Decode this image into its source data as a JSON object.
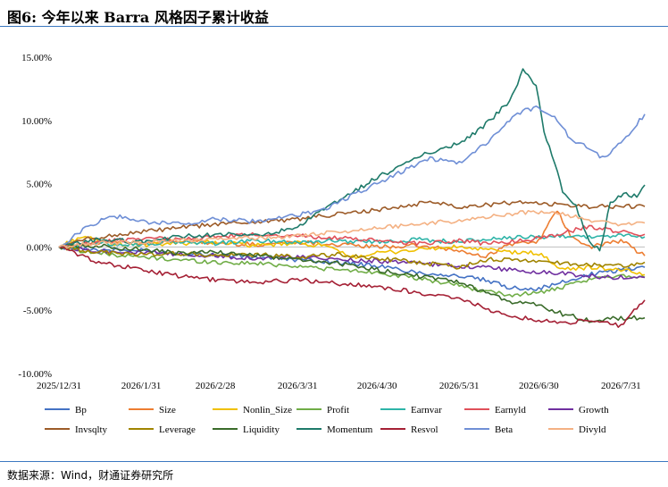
{
  "header": {
    "title": "图6: 今年以来 Barra 风格因子累计收益"
  },
  "footer": {
    "source": "数据来源：Wind，财通证券研究所"
  },
  "chart_data": {
    "type": "line",
    "title": "图6: 今年以来 Barra 风格因子累计收益",
    "xlabel": "",
    "ylabel": "",
    "ylim": [
      -10,
      15
    ],
    "yticks": [
      "15.00%",
      "10.00%",
      "5.00%",
      "0.00%",
      "-5.00%",
      "-10.00%"
    ],
    "ytick_values": [
      15,
      10,
      5,
      0,
      -5,
      -10
    ],
    "xticks": [
      "2025/12/31",
      "2026/1/31",
      "2026/2/28",
      "2026/3/31",
      "2026/4/30",
      "2026/5/31",
      "2026/6/30",
      "2026/7/31"
    ],
    "xtick_days": [
      0,
      31,
      59,
      90,
      120,
      151,
      181,
      212
    ],
    "x_end_day": 221,
    "legend_position": "bottom",
    "grid": false,
    "series": [
      {
        "name": "Bp",
        "color": "#4472c4",
        "points": [
          [
            0,
            0
          ],
          [
            15,
            -0.2
          ],
          [
            31,
            -0.3
          ],
          [
            45,
            -0.5
          ],
          [
            59,
            -0.6
          ],
          [
            75,
            -0.8
          ],
          [
            90,
            -1.0
          ],
          [
            105,
            -1.2
          ],
          [
            120,
            -1.5
          ],
          [
            135,
            -2.0
          ],
          [
            151,
            -2.3
          ],
          [
            160,
            -2.6
          ],
          [
            170,
            -3.2
          ],
          [
            181,
            -3.3
          ],
          [
            190,
            -2.8
          ],
          [
            200,
            -2.2
          ],
          [
            212,
            -1.8
          ],
          [
            221,
            -1.6
          ]
        ]
      },
      {
        "name": "Size",
        "color": "#ed7d31",
        "points": [
          [
            0,
            0
          ],
          [
            10,
            0.2
          ],
          [
            20,
            0.4
          ],
          [
            31,
            0.3
          ],
          [
            45,
            0.5
          ],
          [
            59,
            0.3
          ],
          [
            75,
            0.2
          ],
          [
            90,
            0.4
          ],
          [
            105,
            0.2
          ],
          [
            120,
            0.0
          ],
          [
            135,
            0.1
          ],
          [
            151,
            -0.3
          ],
          [
            160,
            -0.8
          ],
          [
            170,
            0.2
          ],
          [
            181,
            0.5
          ],
          [
            188,
            2.9
          ],
          [
            193,
            0.8
          ],
          [
            200,
            0.0
          ],
          [
            212,
            0.5
          ],
          [
            221,
            -0.7
          ]
        ]
      },
      {
        "name": "Nonlin_Size",
        "color": "#f0c000",
        "points": [
          [
            0,
            0
          ],
          [
            8,
            0.8
          ],
          [
            20,
            0.3
          ],
          [
            31,
            0.1
          ],
          [
            45,
            0.3
          ],
          [
            59,
            0.4
          ],
          [
            75,
            0.1
          ],
          [
            90,
            0.3
          ],
          [
            100,
            0.1
          ],
          [
            110,
            -0.8
          ],
          [
            120,
            -0.5
          ],
          [
            135,
            -0.2
          ],
          [
            151,
            0.0
          ],
          [
            160,
            -0.2
          ],
          [
            170,
            -0.4
          ],
          [
            181,
            -0.5
          ],
          [
            190,
            -1.8
          ],
          [
            200,
            -1.6
          ],
          [
            212,
            -1.8
          ],
          [
            221,
            -2.2
          ]
        ]
      },
      {
        "name": "Profit",
        "color": "#70ad47",
        "points": [
          [
            0,
            0
          ],
          [
            15,
            -0.5
          ],
          [
            31,
            -0.8
          ],
          [
            45,
            -1.0
          ],
          [
            59,
            -1.2
          ],
          [
            75,
            -1.3
          ],
          [
            90,
            -1.5
          ],
          [
            105,
            -1.8
          ],
          [
            120,
            -2.0
          ],
          [
            135,
            -2.5
          ],
          [
            151,
            -3.0
          ],
          [
            160,
            -3.5
          ],
          [
            170,
            -3.8
          ],
          [
            181,
            -3.6
          ],
          [
            190,
            -3.2
          ],
          [
            200,
            -2.6
          ],
          [
            212,
            -2.2
          ],
          [
            221,
            -2.4
          ]
        ]
      },
      {
        "name": "Earnvar",
        "color": "#2eb4a8",
        "points": [
          [
            0,
            0
          ],
          [
            15,
            0.3
          ],
          [
            31,
            0.2
          ],
          [
            45,
            0.4
          ],
          [
            59,
            0.3
          ],
          [
            75,
            0.5
          ],
          [
            90,
            0.4
          ],
          [
            105,
            0.5
          ],
          [
            120,
            0.4
          ],
          [
            135,
            0.6
          ],
          [
            151,
            0.4
          ],
          [
            160,
            0.6
          ],
          [
            170,
            0.7
          ],
          [
            181,
            0.8
          ],
          [
            190,
            0.9
          ],
          [
            200,
            0.8
          ],
          [
            212,
            0.9
          ],
          [
            221,
            0.8
          ]
        ]
      },
      {
        "name": "Earnyld",
        "color": "#e0505a",
        "points": [
          [
            0,
            0
          ],
          [
            15,
            0.4
          ],
          [
            31,
            0.7
          ],
          [
            45,
            0.6
          ],
          [
            59,
            0.8
          ],
          [
            75,
            1.0
          ],
          [
            90,
            0.9
          ],
          [
            105,
            0.7
          ],
          [
            120,
            0.5
          ],
          [
            135,
            0.3
          ],
          [
            151,
            0.5
          ],
          [
            160,
            0.3
          ],
          [
            170,
            0.4
          ],
          [
            181,
            0.7
          ],
          [
            190,
            1.1
          ],
          [
            200,
            1.6
          ],
          [
            212,
            1.2
          ],
          [
            221,
            1.0
          ]
        ]
      },
      {
        "name": "Growth",
        "color": "#7030a0",
        "points": [
          [
            0,
            0
          ],
          [
            15,
            -0.3
          ],
          [
            31,
            -0.4
          ],
          [
            45,
            -0.6
          ],
          [
            59,
            -0.7
          ],
          [
            75,
            -0.9
          ],
          [
            90,
            -0.8
          ],
          [
            105,
            -1.0
          ],
          [
            120,
            -1.1
          ],
          [
            135,
            -1.3
          ],
          [
            151,
            -1.5
          ],
          [
            160,
            -1.6
          ],
          [
            170,
            -1.8
          ],
          [
            181,
            -2.0
          ],
          [
            190,
            -2.1
          ],
          [
            200,
            -2.3
          ],
          [
            212,
            -2.4
          ],
          [
            221,
            -2.4
          ]
        ]
      },
      {
        "name": "Invsqlty",
        "color": "#9c5b28",
        "points": [
          [
            0,
            0
          ],
          [
            10,
            0.6
          ],
          [
            20,
            0.9
          ],
          [
            31,
            1.2
          ],
          [
            45,
            1.5
          ],
          [
            59,
            1.8
          ],
          [
            75,
            2.0
          ],
          [
            90,
            2.2
          ],
          [
            105,
            2.6
          ],
          [
            120,
            2.9
          ],
          [
            130,
            3.2
          ],
          [
            140,
            3.6
          ],
          [
            151,
            3.2
          ],
          [
            160,
            3.3
          ],
          [
            170,
            3.5
          ],
          [
            181,
            3.5
          ],
          [
            190,
            3.3
          ],
          [
            200,
            3.2
          ],
          [
            212,
            3.2
          ],
          [
            221,
            3.2
          ]
        ]
      },
      {
        "name": "Leverage",
        "color": "#a08400",
        "points": [
          [
            0,
            0
          ],
          [
            15,
            -0.4
          ],
          [
            31,
            -0.6
          ],
          [
            45,
            -0.5
          ],
          [
            59,
            -0.7
          ],
          [
            75,
            -0.6
          ],
          [
            90,
            -0.8
          ],
          [
            105,
            -0.6
          ],
          [
            120,
            -0.9
          ],
          [
            135,
            -1.2
          ],
          [
            151,
            -1.6
          ],
          [
            160,
            -1.0
          ],
          [
            170,
            -1.0
          ],
          [
            181,
            -1.1
          ],
          [
            190,
            -1.3
          ],
          [
            200,
            -1.4
          ],
          [
            212,
            -1.5
          ],
          [
            221,
            -1.2
          ]
        ]
      },
      {
        "name": "Liquidity",
        "color": "#3a6b2a",
        "points": [
          [
            0,
            0
          ],
          [
            15,
            0.1
          ],
          [
            31,
            -0.2
          ],
          [
            45,
            -0.5
          ],
          [
            59,
            -0.4
          ],
          [
            75,
            -0.7
          ],
          [
            90,
            -1.0
          ],
          [
            105,
            -1.3
          ],
          [
            120,
            -1.8
          ],
          [
            135,
            -2.3
          ],
          [
            151,
            -2.8
          ],
          [
            160,
            -3.5
          ],
          [
            170,
            -4.3
          ],
          [
            181,
            -4.6
          ],
          [
            190,
            -5.3
          ],
          [
            200,
            -5.8
          ],
          [
            212,
            -5.6
          ],
          [
            221,
            -5.6
          ]
        ]
      },
      {
        "name": "Momentum",
        "color": "#1e7a6a",
        "points": [
          [
            0,
            0
          ],
          [
            15,
            0.6
          ],
          [
            31,
            0.4
          ],
          [
            45,
            0.8
          ],
          [
            59,
            1.0
          ],
          [
            75,
            0.9
          ],
          [
            90,
            1.5
          ],
          [
            100,
            3.0
          ],
          [
            110,
            4.2
          ],
          [
            120,
            5.5
          ],
          [
            130,
            6.5
          ],
          [
            140,
            7.5
          ],
          [
            151,
            8.2
          ],
          [
            160,
            9.5
          ],
          [
            170,
            11.5
          ],
          [
            175,
            13.9
          ],
          [
            180,
            12.8
          ],
          [
            183,
            9.2
          ],
          [
            186,
            7.2
          ],
          [
            190,
            4.5
          ],
          [
            195,
            3.2
          ],
          [
            200,
            0.5
          ],
          [
            204,
            -0.3
          ],
          [
            208,
            3.5
          ],
          [
            213,
            4.2
          ],
          [
            218,
            4.0
          ],
          [
            221,
            4.9
          ]
        ]
      },
      {
        "name": "Resvol",
        "color": "#a52035",
        "points": [
          [
            0,
            0
          ],
          [
            15,
            -1.2
          ],
          [
            31,
            -1.8
          ],
          [
            45,
            -2.3
          ],
          [
            59,
            -2.6
          ],
          [
            75,
            -2.8
          ],
          [
            90,
            -2.6
          ],
          [
            105,
            -2.9
          ],
          [
            120,
            -3.1
          ],
          [
            135,
            -3.6
          ],
          [
            151,
            -4.0
          ],
          [
            160,
            -4.8
          ],
          [
            170,
            -5.4
          ],
          [
            181,
            -5.8
          ],
          [
            190,
            -6.0
          ],
          [
            200,
            -5.8
          ],
          [
            212,
            -6.2
          ],
          [
            221,
            -4.2
          ]
        ]
      },
      {
        "name": "Beta",
        "color": "#6f8fd6",
        "points": [
          [
            0,
            0
          ],
          [
            10,
            1.5
          ],
          [
            20,
            2.5
          ],
          [
            31,
            2.0
          ],
          [
            45,
            1.8
          ],
          [
            59,
            2.2
          ],
          [
            75,
            2.0
          ],
          [
            90,
            2.5
          ],
          [
            100,
            3.0
          ],
          [
            110,
            4.0
          ],
          [
            120,
            5.0
          ],
          [
            130,
            6.0
          ],
          [
            140,
            7.0
          ],
          [
            151,
            6.6
          ],
          [
            160,
            8.0
          ],
          [
            170,
            10.0
          ],
          [
            175,
            10.8
          ],
          [
            181,
            11.0
          ],
          [
            187,
            10.3
          ],
          [
            193,
            8.5
          ],
          [
            200,
            7.8
          ],
          [
            205,
            7.0
          ],
          [
            210,
            7.8
          ],
          [
            216,
            9.2
          ],
          [
            221,
            10.5
          ]
        ]
      },
      {
        "name": "Divyld",
        "color": "#f4b183",
        "points": [
          [
            0,
            0
          ],
          [
            15,
            0.3
          ],
          [
            31,
            0.4
          ],
          [
            45,
            0.5
          ],
          [
            59,
            0.6
          ],
          [
            75,
            0.7
          ],
          [
            90,
            0.9
          ],
          [
            105,
            1.2
          ],
          [
            120,
            1.5
          ],
          [
            135,
            1.8
          ],
          [
            151,
            2.1
          ],
          [
            160,
            2.3
          ],
          [
            170,
            2.6
          ],
          [
            181,
            2.8
          ],
          [
            190,
            2.6
          ],
          [
            200,
            2.1
          ],
          [
            212,
            1.8
          ],
          [
            221,
            1.9
          ]
        ]
      }
    ]
  }
}
